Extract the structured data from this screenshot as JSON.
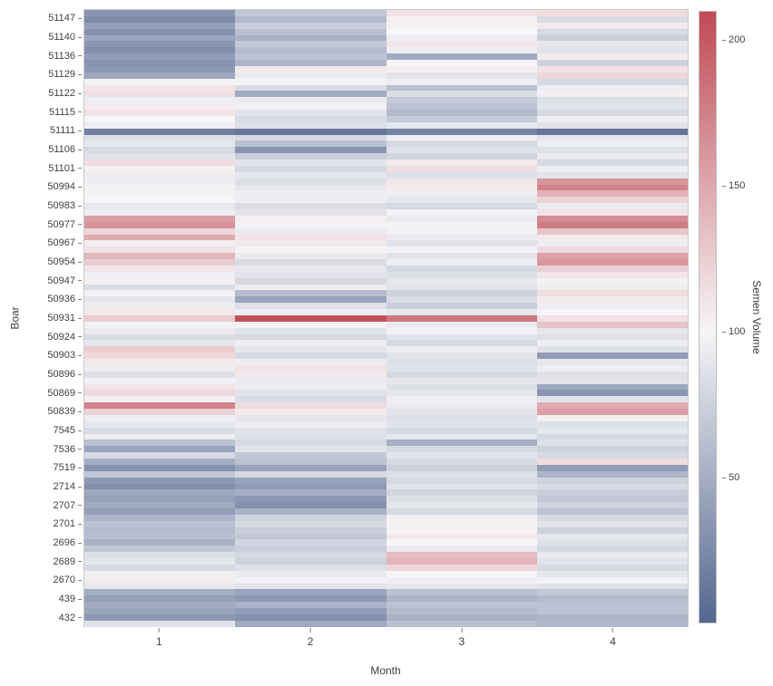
{
  "chart_data": {
    "type": "heatmap",
    "title": "",
    "xlabel": "Month",
    "ylabel": "Boar",
    "colorbar_label": "Semen Volume",
    "x_categories": [
      "1",
      "2",
      "3",
      "4"
    ],
    "colorbar_ticks": [
      200,
      150,
      100,
      50
    ],
    "value_range": [
      0,
      210
    ],
    "value_mid": 100,
    "legend_position": "right",
    "grid": false,
    "colors": {
      "low": "#54678f",
      "mid": "#f6f5f7",
      "high": "#c04a55"
    },
    "groups": [
      {
        "label": "51147",
        "rows": [
          [
            46,
            74,
            112,
            116
          ],
          [
            40,
            66,
            104,
            86
          ],
          [
            52,
            78,
            98,
            108
          ]
        ]
      },
      {
        "label": "51140",
        "rows": [
          [
            44,
            70,
            100,
            84
          ],
          [
            55,
            62,
            95,
            78
          ],
          [
            47,
            75,
            110,
            92
          ]
        ]
      },
      {
        "label": "51136",
        "rows": [
          [
            42,
            68,
            96,
            90
          ],
          [
            50,
            72,
            58,
            106
          ],
          [
            45,
            64,
            100,
            80
          ]
        ]
      },
      {
        "label": "51129",
        "rows": [
          [
            48,
            108,
            104,
            112
          ],
          [
            56,
            94,
            90,
            120
          ],
          [
            98,
            102,
            96,
            84
          ]
        ]
      },
      {
        "label": "51122",
        "rows": [
          [
            110,
            86,
            70,
            96
          ],
          [
            114,
            58,
            86,
            104
          ],
          [
            96,
            94,
            76,
            88
          ]
        ]
      },
      {
        "label": "51115",
        "rows": [
          [
            106,
            98,
            72,
            90
          ],
          [
            112,
            90,
            66,
            84
          ],
          [
            100,
            86,
            76,
            96
          ]
        ]
      },
      {
        "label": "51111",
        "rows": [
          [
            96,
            88,
            92,
            90
          ],
          [
            34,
            30,
            36,
            28
          ],
          [
            88,
            84,
            96,
            92
          ]
        ]
      },
      {
        "label": "51106",
        "rows": [
          [
            92,
            70,
            84,
            96
          ],
          [
            84,
            46,
            90,
            88
          ],
          [
            90,
            78,
            82,
            94
          ]
        ]
      },
      {
        "label": "51101",
        "rows": [
          [
            116,
            90,
            108,
            84
          ],
          [
            98,
            84,
            114,
            96
          ],
          [
            106,
            92,
            88,
            90
          ]
        ]
      },
      {
        "label": "50994",
        "rows": [
          [
            96,
            88,
            110,
            162
          ],
          [
            102,
            92,
            106,
            174
          ],
          [
            98,
            96,
            96,
            144
          ]
        ]
      },
      {
        "label": "50983",
        "rows": [
          [
            100,
            96,
            92,
            122
          ],
          [
            92,
            86,
            84,
            94
          ],
          [
            96,
            90,
            98,
            112
          ]
        ]
      },
      {
        "label": "50977",
        "rows": [
          [
            156,
            104,
            94,
            168
          ],
          [
            164,
            98,
            102,
            178
          ],
          [
            120,
            94,
            98,
            130
          ]
        ]
      },
      {
        "label": "50967",
        "rows": [
          [
            148,
            112,
            94,
            108
          ],
          [
            104,
            108,
            90,
            96
          ],
          [
            112,
            102,
            98,
            118
          ]
        ]
      },
      {
        "label": "50954",
        "rows": [
          [
            140,
            94,
            90,
            154
          ],
          [
            126,
            86,
            96,
            162
          ],
          [
            110,
            92,
            84,
            124
          ]
        ]
      },
      {
        "label": "50947",
        "rows": [
          [
            96,
            90,
            88,
            110
          ],
          [
            104,
            84,
            92,
            98
          ],
          [
            86,
            96,
            90,
            106
          ]
        ]
      },
      {
        "label": "50936",
        "rows": [
          [
            98,
            68,
            80,
            116
          ],
          [
            92,
            54,
            86,
            108
          ],
          [
            96,
            88,
            78,
            96
          ]
        ]
      },
      {
        "label": "50931",
        "rows": [
          [
            108,
            96,
            92,
            100
          ],
          [
            126,
            206,
            182,
            112
          ],
          [
            98,
            102,
            94,
            132
          ]
        ]
      },
      {
        "label": "50924",
        "rows": [
          [
            94,
            90,
            98,
            92
          ],
          [
            86,
            84,
            90,
            88
          ],
          [
            92,
            96,
            84,
            96
          ]
        ]
      },
      {
        "label": "50903",
        "rows": [
          [
            126,
            92,
            96,
            88
          ],
          [
            118,
            84,
            90,
            50
          ],
          [
            108,
            96,
            88,
            92
          ]
        ]
      },
      {
        "label": "50896",
        "rows": [
          [
            96,
            112,
            90,
            96
          ],
          [
            88,
            108,
            84,
            88
          ],
          [
            98,
            94,
            92,
            90
          ]
        ]
      },
      {
        "label": "50869",
        "rows": [
          [
            112,
            96,
            88,
            56
          ],
          [
            118,
            90,
            92,
            46
          ],
          [
            104,
            86,
            96,
            90
          ]
        ]
      },
      {
        "label": "50839",
        "rows": [
          [
            174,
            116,
            94,
            148
          ],
          [
            122,
            108,
            90,
            156
          ],
          [
            96,
            92,
            88,
            104
          ]
        ]
      },
      {
        "label": "7545",
        "rows": [
          [
            92,
            96,
            90,
            88
          ],
          [
            86,
            90,
            84,
            92
          ],
          [
            96,
            88,
            92,
            84
          ]
        ]
      },
      {
        "label": "7536",
        "rows": [
          [
            70,
            84,
            60,
            88
          ],
          [
            54,
            90,
            84,
            80
          ],
          [
            84,
            74,
            90,
            84
          ]
        ]
      },
      {
        "label": "7519",
        "rows": [
          [
            60,
            72,
            84,
            116
          ],
          [
            44,
            54,
            80,
            50
          ],
          [
            74,
            84,
            88,
            64
          ]
        ]
      },
      {
        "label": "2714",
        "rows": [
          [
            48,
            54,
            84,
            80
          ],
          [
            42,
            50,
            90,
            84
          ],
          [
            56,
            60,
            82,
            78
          ]
        ]
      },
      {
        "label": "2707",
        "rows": [
          [
            52,
            48,
            88,
            74
          ],
          [
            58,
            44,
            92,
            80
          ],
          [
            50,
            62,
            84,
            72
          ]
        ]
      },
      {
        "label": "2701",
        "rows": [
          [
            64,
            80,
            104,
            84
          ],
          [
            72,
            84,
            98,
            90
          ],
          [
            68,
            78,
            102,
            80
          ]
        ]
      },
      {
        "label": "2696",
        "rows": [
          [
            70,
            74,
            108,
            92
          ],
          [
            62,
            82,
            100,
            88
          ],
          [
            74,
            78,
            94,
            84
          ]
        ]
      },
      {
        "label": "2689",
        "rows": [
          [
            88,
            84,
            136,
            94
          ],
          [
            92,
            80,
            142,
            90
          ],
          [
            84,
            88,
            120,
            84
          ]
        ]
      },
      {
        "label": "2670",
        "rows": [
          [
            98,
            94,
            100,
            92
          ],
          [
            106,
            98,
            96,
            98
          ],
          [
            92,
            90,
            92,
            88
          ]
        ]
      },
      {
        "label": "439",
        "rows": [
          [
            60,
            54,
            70,
            74
          ],
          [
            52,
            48,
            64,
            68
          ],
          [
            58,
            62,
            72,
            70
          ]
        ]
      },
      {
        "label": "432",
        "rows": [
          [
            54,
            50,
            68,
            72
          ],
          [
            48,
            44,
            62,
            64
          ],
          [
            90,
            58,
            70,
            66
          ]
        ]
      }
    ]
  }
}
